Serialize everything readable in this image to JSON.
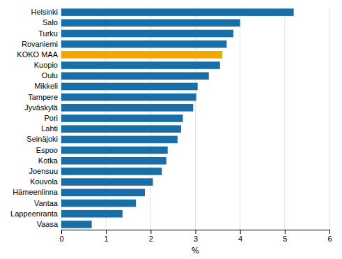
{
  "chart_data": {
    "type": "bar",
    "orientation": "horizontal",
    "categories": [
      "Helsinki",
      "Salo",
      "Turku",
      "Rovaniemi",
      "KOKO MAA",
      "Kuopio",
      "Oulu",
      "Mikkeli",
      "Tampere",
      "Jyväskylä",
      "Pori",
      "Lahti",
      "Seinäjoki",
      "Espoo",
      "Kotka",
      "Joensuu",
      "Kouvola",
      "Hämeenlinna",
      "Vantaa",
      "Lappeenranta",
      "Vaasa"
    ],
    "values": [
      5.2,
      4.0,
      3.85,
      3.7,
      3.6,
      3.55,
      3.3,
      3.05,
      3.02,
      2.95,
      2.72,
      2.68,
      2.6,
      2.38,
      2.35,
      2.25,
      2.05,
      1.87,
      1.67,
      1.37,
      0.68
    ],
    "colors": [
      "#1a6ea8",
      "#1a6ea8",
      "#1a6ea8",
      "#1a6ea8",
      "#f0a800",
      "#1a6ea8",
      "#1a6ea8",
      "#1a6ea8",
      "#1a6ea8",
      "#1a6ea8",
      "#1a6ea8",
      "#1a6ea8",
      "#1a6ea8",
      "#1a6ea8",
      "#1a6ea8",
      "#1a6ea8",
      "#1a6ea8",
      "#1a6ea8",
      "#1a6ea8",
      "#1a6ea8",
      "#1a6ea8"
    ],
    "xlabel": "%",
    "xlim": [
      0,
      6
    ],
    "xticks": [
      0,
      1,
      2,
      3,
      4,
      5,
      6
    ],
    "grid": true
  }
}
